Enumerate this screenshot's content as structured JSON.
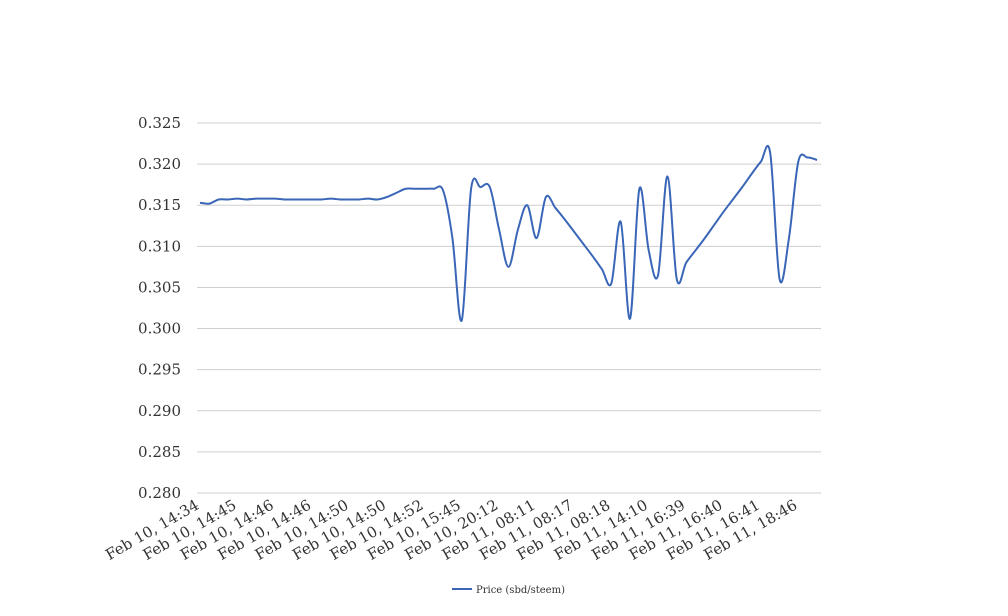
{
  "chart_data": {
    "type": "line",
    "categories": [
      "Feb 10, 14:34",
      null,
      null,
      null,
      "Feb 10, 14:45",
      null,
      null,
      null,
      "Feb 10, 14:46",
      null,
      null,
      null,
      "Feb 10, 14:46",
      null,
      null,
      null,
      "Feb 10, 14:50",
      null,
      null,
      null,
      "Feb 10, 14:50",
      null,
      null,
      null,
      "Feb 10, 14:52",
      null,
      null,
      null,
      "Feb 10, 15:45",
      null,
      null,
      null,
      "Feb 10, 20:12",
      null,
      null,
      null,
      "Feb 11, 08:11",
      null,
      null,
      null,
      "Feb 11, 08:17",
      null,
      null,
      null,
      "Feb 11, 08:18",
      null,
      null,
      null,
      "Feb 11, 14:10",
      null,
      null,
      null,
      "Feb 11, 16:39",
      null,
      null,
      null,
      "Feb 11, 16:40",
      null,
      null,
      null,
      "Feb 11, 16:41",
      null,
      null,
      null,
      "Feb 11, 18:46",
      null,
      null
    ],
    "series": [
      {
        "name": "Price (sbd/steem)",
        "color": "#3a66b8",
        "values": [
          0.3153,
          0.3152,
          0.3157,
          0.3157,
          0.3158,
          0.3157,
          0.3158,
          0.3158,
          0.3158,
          0.3157,
          0.3157,
          0.3157,
          0.3157,
          0.3157,
          0.3158,
          0.3157,
          0.3157,
          0.3157,
          0.3158,
          0.3157,
          0.316,
          0.3165,
          0.317,
          0.317,
          0.317,
          0.317,
          0.3168,
          0.311,
          0.301,
          0.317,
          0.3172,
          0.3172,
          0.312,
          0.3075,
          0.312,
          0.315,
          0.311,
          0.316,
          0.3147,
          0.3133,
          0.3118,
          0.3103,
          0.3088,
          0.3072,
          0.3055,
          0.313,
          0.3012,
          0.317,
          0.3095,
          0.3065,
          0.3185,
          0.306,
          0.308,
          0.3095,
          0.311,
          0.3126,
          0.3142,
          0.3157,
          0.3172,
          0.3188,
          0.3203,
          0.3213,
          0.306,
          0.311,
          0.3203,
          0.3208,
          0.3205
        ]
      }
    ],
    "ylim": [
      0.28,
      0.325
    ],
    "yticks": [
      {
        "value": 0.28,
        "label": "0.280"
      },
      0.285,
      {
        "value": 0.29,
        "label": "0.290"
      },
      0.295,
      {
        "value": 0.3,
        "label": "0.300"
      },
      0.305,
      {
        "value": 0.31,
        "label": "0.310"
      },
      0.315,
      {
        "value": 0.32,
        "label": "0.320"
      },
      0.325
    ],
    "grid": true,
    "legend": "bottom"
  }
}
